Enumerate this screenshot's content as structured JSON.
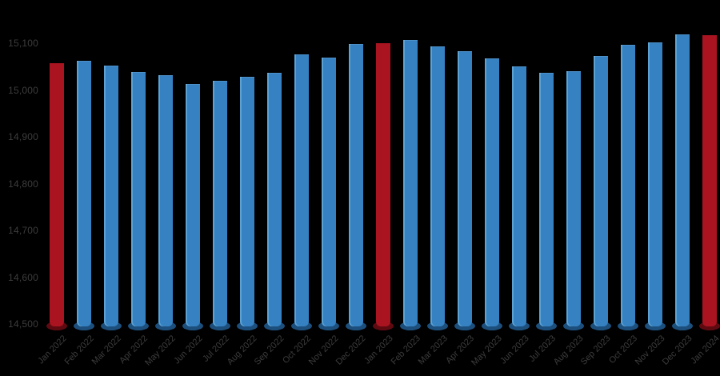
{
  "chart_data": {
    "type": "bar",
    "title": "",
    "xlabel": "",
    "ylabel": "",
    "categories": [
      "Jan 2022",
      "Feb 2022",
      "Mar 2022",
      "Apr 2022",
      "May 2022",
      "Jun 2022",
      "Jul 2022",
      "Aug 2022",
      "Sep 2022",
      "Oct 2022",
      "Nov 2022",
      "Dec 2022",
      "Jan 2023",
      "Feb 2023",
      "Mar 2023",
      "Apr 2023",
      "May 2023",
      "Jun 2023",
      "Jul 2023",
      "Aug 2023",
      "Sep 2023",
      "Oct 2023",
      "Nov 2023",
      "Dec 2023",
      "Jan 2024"
    ],
    "values": [
      15057,
      15062,
      15052,
      15038,
      15032,
      15013,
      15020,
      15028,
      15037,
      15076,
      15069,
      15098,
      15100,
      15107,
      15093,
      15083,
      15068,
      15050,
      15037,
      15040,
      15073,
      15097,
      15102,
      15119,
      15117
    ],
    "highlighted_indices": [
      0,
      12,
      24
    ],
    "ylim": [
      14500,
      15124
    ],
    "yticks": [
      14500,
      14600,
      14700,
      14800,
      14900,
      15000,
      15100
    ],
    "ytick_labels": [
      "14,500",
      "14,600",
      "14,700",
      "14,800",
      "14,900",
      "15,000",
      "15,100"
    ],
    "grid": "off",
    "legend": "none",
    "colors": {
      "bar_blue": "#3581c1",
      "bar_blue_base": "#1d4f7d",
      "bar_red": "#a91420",
      "bar_red_base": "#5f0a11",
      "axis_text": "#3c3c3c",
      "background": "#000000"
    }
  }
}
